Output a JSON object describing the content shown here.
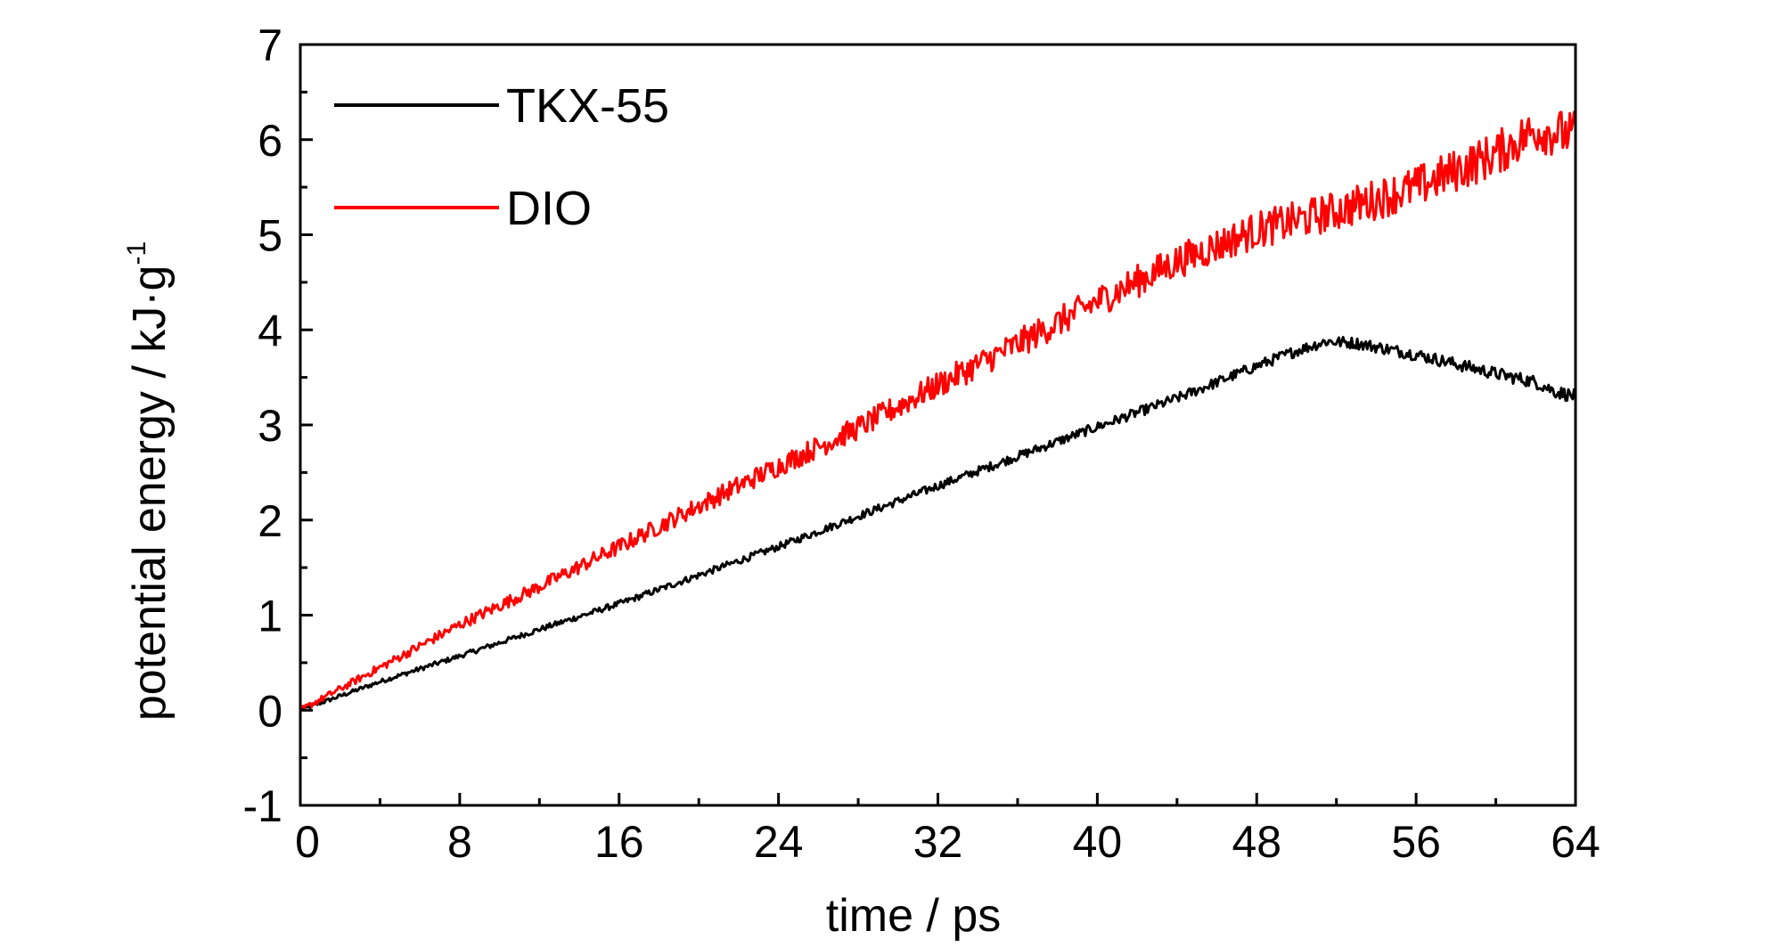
{
  "chart_data": {
    "type": "line",
    "xlabel": "time / ps",
    "ylabel": "potential energy / kJ·g",
    "ylabel_superscript": "-1",
    "xlim": [
      0,
      64
    ],
    "ylim": [
      -1,
      7
    ],
    "x_ticks": [
      "0",
      "8",
      "16",
      "24",
      "32",
      "40",
      "48",
      "56",
      "64"
    ],
    "y_ticks": [
      "-1",
      "0",
      "1",
      "2",
      "3",
      "4",
      "5",
      "6",
      "7"
    ],
    "grid": false,
    "legend_position": "top-left",
    "series": [
      {
        "name": "TKX-55",
        "color": "#000000",
        "noise": "low",
        "x": [
          0,
          4,
          8,
          12,
          16,
          20,
          24,
          28,
          32,
          36,
          40,
          44,
          48,
          50,
          51.5,
          53,
          56,
          58,
          60,
          62,
          63,
          64
        ],
        "y": [
          0,
          0.3,
          0.57,
          0.85,
          1.12,
          1.42,
          1.72,
          2.04,
          2.36,
          2.67,
          2.98,
          3.28,
          3.62,
          3.78,
          3.88,
          3.86,
          3.74,
          3.64,
          3.54,
          3.45,
          3.35,
          3.3
        ]
      },
      {
        "name": "DIO",
        "color": "#ff0000",
        "noise": "high",
        "x": [
          0,
          4,
          8,
          12,
          16,
          20,
          24,
          28,
          32,
          36,
          40,
          44,
          48,
          52,
          56,
          60,
          62,
          64
        ],
        "y": [
          0,
          0.45,
          0.9,
          1.3,
          1.72,
          2.15,
          2.57,
          2.97,
          3.42,
          3.85,
          4.3,
          4.72,
          5.05,
          5.25,
          5.5,
          5.85,
          6.1,
          6.05
        ]
      }
    ]
  }
}
